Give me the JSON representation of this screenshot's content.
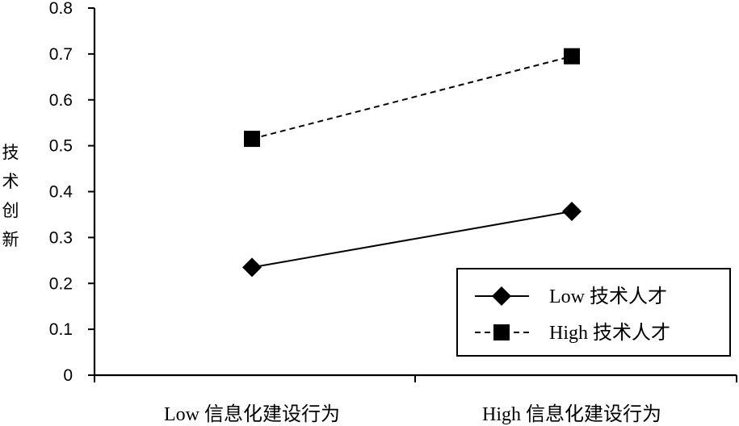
{
  "chart_data": {
    "type": "line",
    "categories": [
      "Low 信息化建设行为",
      "High 信息化建设行为"
    ],
    "series": [
      {
        "name": "Low 技术人才",
        "values": [
          0.235,
          0.357
        ],
        "line_style": "solid",
        "marker": "diamond",
        "color": "#000000"
      },
      {
        "name": "High 技术人才",
        "values": [
          0.515,
          0.695
        ],
        "line_style": "dashed",
        "marker": "square",
        "color": "#000000"
      }
    ],
    "title": "",
    "xlabel": "",
    "ylabel": "技术创新",
    "ylim": [
      0,
      0.8
    ],
    "yticks": [
      "0",
      "0.1",
      "0.2",
      "0.3",
      "0.4",
      "0.5",
      "0.6",
      "0.7",
      "0.8"
    ],
    "grid": false,
    "legend_position": "bottom-right"
  }
}
